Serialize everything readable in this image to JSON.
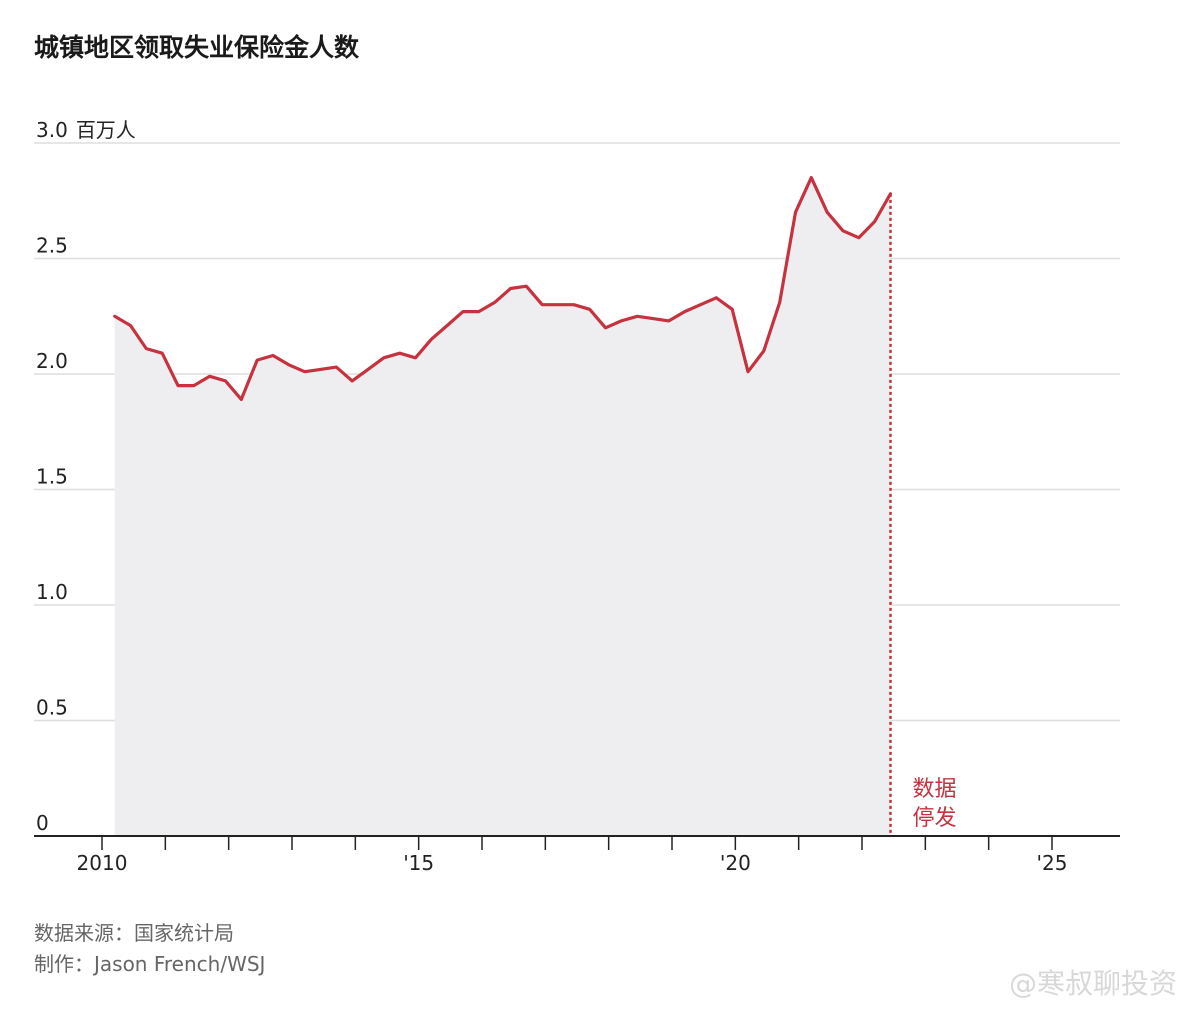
{
  "title": "城镇地区领取失业保险金人数",
  "source": "数据来源：国家统计局",
  "credit": "制作：Jason French/WSJ",
  "watermark": "@寒叔聊投资",
  "colors": {
    "line": "#c6323f",
    "area": "#eeeef0",
    "grid": "#dddddd",
    "axis": "#222222"
  },
  "chart_data": {
    "type": "line",
    "title": "城镇地区领取失业保险金人数",
    "ylabel": "百万人",
    "ylim": [
      0,
      3.0
    ],
    "xlim": [
      2009.75,
      2026
    ],
    "y_ticks": [
      {
        "value": 3.0,
        "label": "3.0"
      },
      {
        "value": 2.5,
        "label": "2.5"
      },
      {
        "value": 2.0,
        "label": "2.0"
      },
      {
        "value": 1.5,
        "label": "1.5"
      },
      {
        "value": 1.0,
        "label": "1.0"
      },
      {
        "value": 0.5,
        "label": "0.5"
      },
      {
        "value": 0,
        "label": "0"
      }
    ],
    "y_unit_label": "百万人",
    "x_tick_marks": [
      2010,
      2011,
      2012,
      2013,
      2014,
      2015,
      2016,
      2017,
      2018,
      2019,
      2020,
      2021,
      2022,
      2023,
      2024,
      2025
    ],
    "x_tick_labels": [
      {
        "value": 2010,
        "label": "2010"
      },
      {
        "value": 2015,
        "label": "'15"
      },
      {
        "value": 2020,
        "label": "'20"
      },
      {
        "value": 2025,
        "label": "'25"
      }
    ],
    "grid": true,
    "area_fill": true,
    "series": [
      {
        "x": [
          2010.2,
          2010.45,
          2010.7,
          2010.95,
          2011.2,
          2011.45,
          2011.7,
          2011.95,
          2012.2,
          2012.45,
          2012.7,
          2012.95,
          2013.2,
          2013.45,
          2013.7,
          2013.95,
          2014.2,
          2014.45,
          2014.7,
          2014.95,
          2015.2,
          2015.45,
          2015.7,
          2015.95,
          2016.2,
          2016.45,
          2016.7,
          2016.95,
          2017.2,
          2017.45,
          2017.7,
          2017.95,
          2018.2,
          2018.45,
          2018.7,
          2018.95,
          2019.2,
          2019.45,
          2019.7,
          2019.95,
          2020.2,
          2020.45,
          2020.7,
          2020.95,
          2021.2,
          2021.45,
          2021.7,
          2021.95,
          2022.2,
          2022.45
        ],
        "y": [
          2.25,
          2.21,
          2.11,
          2.09,
          1.95,
          1.95,
          1.99,
          1.97,
          1.89,
          2.06,
          2.08,
          2.04,
          2.01,
          2.02,
          2.03,
          1.97,
          2.02,
          2.07,
          2.09,
          2.07,
          2.15,
          2.21,
          2.27,
          2.27,
          2.31,
          2.37,
          2.38,
          2.3,
          2.3,
          2.3,
          2.28,
          2.2,
          2.23,
          2.25,
          2.24,
          2.23,
          2.27,
          2.3,
          2.33,
          2.28,
          2.01,
          2.1,
          2.31,
          2.7,
          2.85,
          2.7,
          2.62,
          2.59,
          2.66,
          2.78
        ]
      }
    ],
    "annotation": {
      "x": 2022.45,
      "lines": [
        "数据",
        "停发"
      ]
    }
  }
}
